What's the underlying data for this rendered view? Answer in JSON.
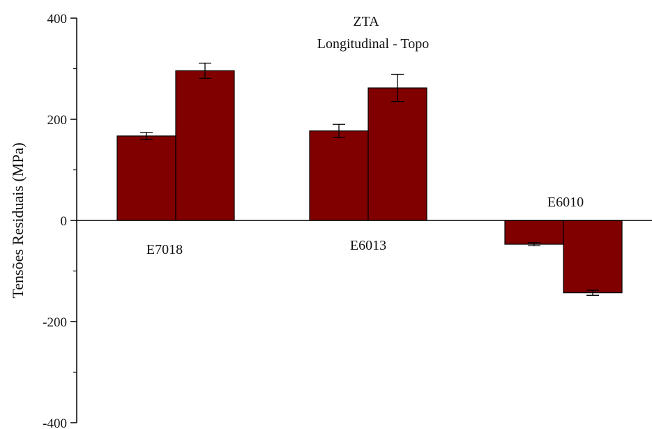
{
  "chart_data": {
    "type": "bar",
    "title": "ZTA",
    "subtitle": "Longitudinal - Topo",
    "xlabel": "",
    "ylabel": "Tensões Residuais (MPa)",
    "ylim": [
      -400,
      400
    ],
    "yticks": [
      -400,
      -200,
      0,
      200,
      400
    ],
    "ytick_labels": [
      "-400",
      "-200",
      "0",
      "200",
      "400"
    ],
    "categories": [
      "E7018",
      "E6013",
      "E6010"
    ],
    "series": [
      {
        "values": [
          167,
          177,
          -47
        ],
        "errors": [
          7,
          13,
          3
        ]
      },
      {
        "values": [
          296,
          262,
          -143
        ],
        "errors": [
          15,
          27,
          5
        ]
      }
    ],
    "bar_color": "#800000",
    "grid": false,
    "legend": "none"
  }
}
